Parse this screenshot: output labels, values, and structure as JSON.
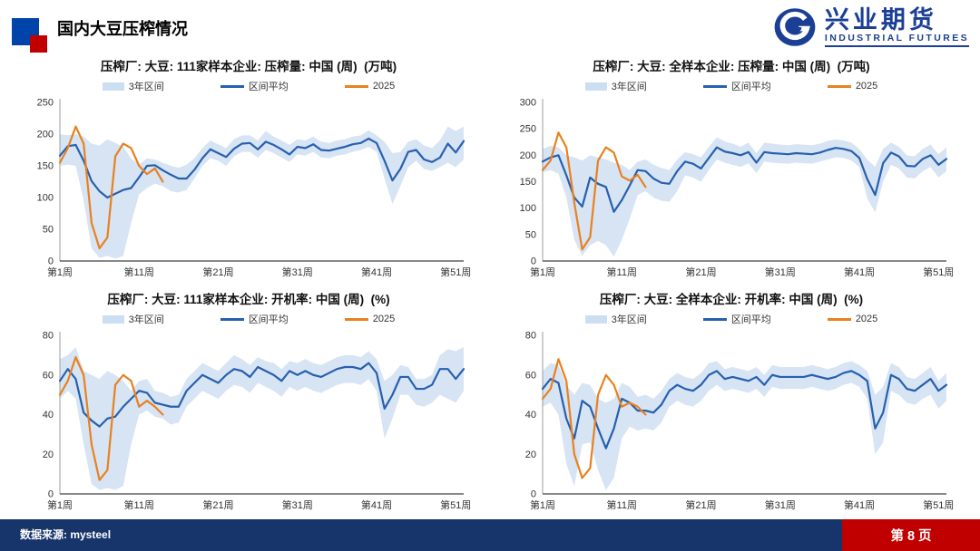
{
  "header": {
    "title": "国内大豆压榨情况",
    "logo_cn": "兴业期货",
    "logo_en": "INDUSTRIAL FUTURES"
  },
  "legend": {
    "range": "3年区间",
    "avg": "区间平均",
    "current": "2025"
  },
  "colors": {
    "band": "#D7E4F4",
    "avg_line": "#2760AE",
    "current_line": "#E8811F",
    "footer_bg": "#17356B",
    "page_red": "#C00000",
    "logo_blue": "#1B3F94",
    "title_square_blue": "#0044A9",
    "title_square_red": "#C00000",
    "y_axis": "#9E9E9E",
    "x_axis": "#404040",
    "tick_text": "#333333"
  },
  "x_ticks": {
    "weeks": [
      1,
      11,
      21,
      31,
      41,
      51
    ],
    "labels": [
      "第1周",
      "第11周",
      "第21周",
      "第31周",
      "第41周",
      "第51周"
    ]
  },
  "footer": {
    "source": "数据来源: mysteel",
    "page": "第 8 页"
  },
  "chart_data": [
    {
      "type": "line",
      "title": "压榨厂: 大豆: 111家样本企业: 压榨量: 中国 (周)  (万吨)",
      "unit": "万吨",
      "xlabel": "周",
      "ylim": [
        0,
        250
      ],
      "yticks": [
        0,
        50,
        100,
        150,
        200,
        250
      ],
      "grid": false,
      "legend_position": "top",
      "series": [
        {
          "name": "3年区间",
          "kind": "band",
          "min": [
            150,
            152,
            150,
            95,
            20,
            5,
            8,
            4,
            8,
            60,
            105,
            115,
            122,
            118,
            110,
            108,
            112,
            130,
            150,
            162,
            158,
            150,
            165,
            172,
            172,
            163,
            175,
            170,
            163,
            156,
            168,
            166,
            172,
            163,
            162,
            166,
            168,
            172,
            175,
            180,
            172,
            130,
            90,
            118,
            148,
            158,
            145,
            142,
            148,
            155,
            148,
            160
          ],
          "max": [
            200,
            198,
            200,
            196,
            185,
            182,
            192,
            186,
            180,
            162,
            152,
            162,
            160,
            155,
            150,
            147,
            152,
            162,
            178,
            190,
            184,
            178,
            192,
            198,
            198,
            190,
            205,
            196,
            190,
            183,
            192,
            190,
            196,
            188,
            186,
            190,
            192,
            196,
            198,
            206,
            198,
            188,
            170,
            172,
            188,
            192,
            182,
            178,
            190,
            212,
            205,
            212
          ]
        },
        {
          "name": "区间平均",
          "kind": "line",
          "values": [
            166,
            181,
            183,
            158,
            126,
            110,
            100,
            106,
            112,
            115,
            132,
            150,
            151,
            143,
            136,
            130,
            130,
            144,
            162,
            176,
            170,
            164,
            177,
            185,
            186,
            176,
            188,
            183,
            176,
            168,
            180,
            178,
            184,
            175,
            174,
            177,
            180,
            184,
            186,
            193,
            186,
            158,
            127,
            145,
            172,
            175,
            160,
            156,
            163,
            185,
            171,
            189
          ]
        },
        {
          "name": "2025",
          "kind": "line",
          "values": [
            155,
            178,
            212,
            185,
            60,
            20,
            37,
            165,
            185,
            178,
            150,
            137,
            146,
            125
          ]
        }
      ]
    },
    {
      "type": "line",
      "title": "压榨厂: 大豆: 全样本企业: 压榨量: 中国 (周)  (万吨)",
      "unit": "万吨",
      "xlabel": "周",
      "ylim": [
        0,
        300
      ],
      "yticks": [
        0,
        50,
        100,
        150,
        200,
        250,
        300
      ],
      "grid": false,
      "legend_position": "top",
      "series": [
        {
          "name": "3年区间",
          "kind": "band",
          "min": [
            168,
            172,
            165,
            120,
            40,
            10,
            30,
            38,
            30,
            8,
            40,
            80,
            125,
            132,
            120,
            114,
            112,
            132,
            162,
            158,
            150,
            172,
            192,
            186,
            182,
            178,
            185,
            166,
            188,
            186,
            185,
            184,
            186,
            185,
            184,
            188,
            192,
            196,
            195,
            190,
            178,
            118,
            92,
            150,
            182,
            175,
            158,
            156,
            170,
            178,
            158,
            170
          ],
          "max": [
            212,
            218,
            215,
            200,
            196,
            190,
            200,
            196,
            192,
            186,
            182,
            172,
            188,
            192,
            182,
            176,
            172,
            192,
            206,
            202,
            196,
            216,
            234,
            226,
            222,
            216,
            224,
            204,
            224,
            222,
            220,
            219,
            221,
            220,
            219,
            222,
            227,
            230,
            228,
            224,
            212,
            192,
            178,
            212,
            224,
            216,
            200,
            198,
            212,
            220,
            202,
            215
          ]
        },
        {
          "name": "区间平均",
          "kind": "line",
          "values": [
            188,
            196,
            200,
            162,
            120,
            103,
            158,
            146,
            140,
            93,
            115,
            143,
            172,
            170,
            156,
            148,
            146,
            170,
            188,
            184,
            175,
            195,
            215,
            207,
            204,
            200,
            206,
            186,
            206,
            204,
            203,
            202,
            204,
            203,
            202,
            205,
            210,
            214,
            212,
            208,
            195,
            155,
            125,
            185,
            205,
            198,
            180,
            179,
            193,
            200,
            182,
            193
          ]
        },
        {
          "name": "2025",
          "kind": "line",
          "values": [
            172,
            190,
            243,
            215,
            110,
            22,
            45,
            190,
            215,
            205,
            160,
            152,
            163,
            140
          ]
        }
      ]
    },
    {
      "type": "line",
      "title": "压榨厂: 大豆: 111家样本企业: 开机率: 中国 (周)  (%)",
      "unit": "%",
      "xlabel": "周",
      "ylim": [
        0,
        80
      ],
      "yticks": [
        0,
        20,
        40,
        60,
        80
      ],
      "grid": false,
      "legend_position": "top",
      "series": [
        {
          "name": "3年区间",
          "kind": "band",
          "min": [
            48,
            52,
            48,
            25,
            5,
            2,
            3,
            2,
            4,
            25,
            40,
            42,
            39,
            38,
            35,
            36,
            44,
            48,
            52,
            50,
            48,
            52,
            55,
            54,
            51,
            56,
            54,
            52,
            49,
            54,
            52,
            54,
            52,
            51,
            53,
            55,
            56,
            56,
            55,
            58,
            52,
            28,
            38,
            50,
            50,
            45,
            44,
            46,
            50,
            48,
            46,
            52
          ],
          "max": [
            68,
            70,
            74,
            62,
            60,
            58,
            62,
            60,
            57,
            52,
            57,
            58,
            52,
            51,
            49,
            50,
            58,
            62,
            66,
            64,
            62,
            66,
            70,
            68,
            65,
            69,
            67,
            66,
            63,
            67,
            66,
            68,
            66,
            65,
            67,
            69,
            70,
            70,
            69,
            72,
            68,
            57,
            60,
            65,
            64,
            58,
            58,
            60,
            70,
            73,
            72,
            74
          ]
        },
        {
          "name": "区间平均",
          "kind": "line",
          "values": [
            57,
            63,
            58,
            41,
            37,
            34,
            38,
            39,
            44,
            48,
            52,
            51,
            46,
            45,
            44,
            44,
            52,
            56,
            60,
            58,
            56,
            60,
            63,
            62,
            59,
            64,
            62,
            60,
            57,
            62,
            60,
            62,
            60,
            59,
            61,
            63,
            64,
            64,
            63,
            66,
            61,
            43,
            50,
            59,
            59,
            53,
            53,
            55,
            63,
            63,
            58,
            63
          ]
        },
        {
          "name": "2025",
          "kind": "line",
          "values": [
            50,
            57,
            69,
            60,
            25,
            7,
            12,
            55,
            60,
            57,
            44,
            47,
            44,
            40
          ]
        }
      ]
    },
    {
      "type": "line",
      "title": "压榨厂: 大豆: 全样本企业: 开机率: 中国 (周)  (%)",
      "unit": "%",
      "xlabel": "周",
      "ylim": [
        0,
        80
      ],
      "yticks": [
        0,
        20,
        40,
        60,
        80
      ],
      "grid": false,
      "legend_position": "top",
      "series": [
        {
          "name": "3年区间",
          "kind": "band",
          "min": [
            44,
            46,
            40,
            15,
            4,
            25,
            26,
            12,
            2,
            8,
            28,
            34,
            32,
            33,
            32,
            36,
            44,
            47,
            45,
            44,
            47,
            52,
            55,
            52,
            53,
            52,
            51,
            53,
            49,
            54,
            53,
            53,
            53,
            53,
            54,
            53,
            52,
            53,
            55,
            56,
            54,
            48,
            20,
            26,
            52,
            50,
            46,
            45,
            48,
            50,
            43,
            47
          ],
          "max": [
            62,
            66,
            65,
            55,
            50,
            56,
            55,
            48,
            46,
            48,
            56,
            54,
            49,
            50,
            48,
            52,
            58,
            61,
            59,
            58,
            61,
            66,
            67,
            63,
            64,
            63,
            62,
            64,
            60,
            65,
            64,
            64,
            64,
            64,
            65,
            64,
            63,
            64,
            66,
            67,
            65,
            62,
            50,
            54,
            66,
            64,
            59,
            58,
            61,
            64,
            57,
            61
          ]
        },
        {
          "name": "区间平均",
          "kind": "line",
          "values": [
            53,
            58,
            56,
            38,
            28,
            47,
            44,
            33,
            23,
            33,
            48,
            46,
            42,
            42,
            41,
            45,
            52,
            55,
            53,
            52,
            55,
            60,
            62,
            58,
            59,
            58,
            57,
            59,
            55,
            60,
            59,
            59,
            59,
            59,
            60,
            59,
            58,
            59,
            61,
            62,
            60,
            57,
            33,
            41,
            60,
            58,
            53,
            52,
            55,
            58,
            52,
            55
          ]
        },
        {
          "name": "2025",
          "kind": "line",
          "values": [
            48,
            53,
            68,
            57,
            20,
            8,
            13,
            50,
            60,
            55,
            44,
            46,
            44,
            40
          ]
        }
      ]
    }
  ]
}
